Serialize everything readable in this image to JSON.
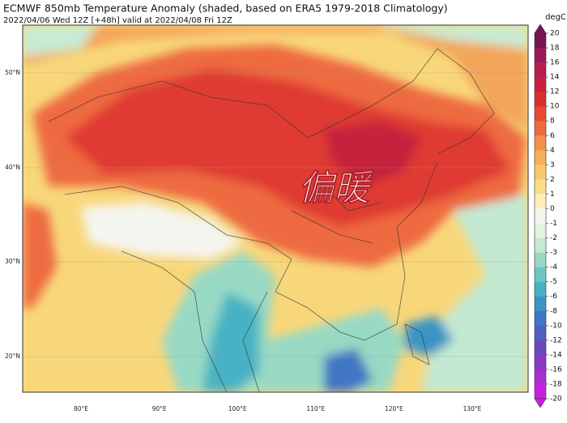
{
  "header": {
    "title": "ECMWF 850mb Temperature Anomaly (shaded, based on ERA5 1979-2018 Climatology)",
    "subtitle": "2022/04/06 Wed 12Z [+48h] valid at 2022/04/08 Fri 12Z"
  },
  "map": {
    "annotation": "偏暖",
    "lat_labels": [
      "50°N",
      "40°N",
      "30°N",
      "20°N"
    ],
    "lon_labels": [
      "80°E",
      "90°E",
      "100°E",
      "110°E",
      "120°E",
      "130°E"
    ]
  },
  "colorbar": {
    "label": "degC",
    "ticks": [
      20,
      18,
      16,
      14,
      12,
      10,
      8,
      6,
      4,
      3,
      2,
      1,
      0,
      -1,
      -2,
      -3,
      -4,
      -5,
      -6,
      -8,
      -10,
      -12,
      -14,
      -16,
      -18,
      -20
    ],
    "colors": [
      "#7a1450",
      "#9a1a5a",
      "#b51f4e",
      "#c9213c",
      "#d9302e",
      "#e54a35",
      "#ee6b3f",
      "#f38f4b",
      "#f6ae58",
      "#f9c86a",
      "#fbdd88",
      "#fdefb8",
      "#f5f5f0",
      "#e3f3df",
      "#c3e9d2",
      "#98d9c4",
      "#6ac8c0",
      "#47b2c3",
      "#3b94c6",
      "#4076c3",
      "#515fc0",
      "#6a48bd",
      "#8a38c4",
      "#a92ed2",
      "#c820e2"
    ]
  }
}
